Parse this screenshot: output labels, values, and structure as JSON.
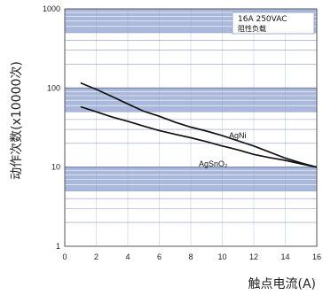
{
  "chart_data": {
    "type": "line",
    "x_scale": "linear",
    "y_scale": "log",
    "xlim": [
      0,
      16
    ],
    "ylim": [
      1,
      1000
    ],
    "x_ticks": [
      "0",
      "2",
      "4",
      "6",
      "8",
      "10",
      "12",
      "14",
      "16"
    ],
    "y_ticks": [
      "1",
      "10",
      "100",
      "1000"
    ],
    "xlabel": "触点电流(A)",
    "ylabel": "动作次数(x10000次)",
    "legend_box": {
      "line1": "16A 250VAC",
      "line2": "阻性负载"
    },
    "series": [
      {
        "name": "AgNi",
        "x": [
          1,
          2,
          3,
          4,
          5,
          6,
          7,
          8,
          9,
          10,
          11,
          12,
          13,
          14,
          15,
          16
        ],
        "y": [
          116,
          96,
          78,
          63,
          51,
          44,
          37,
          32,
          28.5,
          25,
          21.5,
          18.5,
          15.5,
          13,
          11.3,
          10
        ]
      },
      {
        "name": "AgSnO₂",
        "x": [
          1,
          2,
          3,
          4,
          5,
          6,
          7,
          8,
          9,
          10,
          11,
          12,
          13,
          14,
          15,
          16
        ],
        "y": [
          58,
          50,
          43,
          38,
          33,
          29,
          26,
          23.5,
          21,
          18.5,
          16.5,
          14.5,
          13.2,
          12.2,
          11,
          10
        ]
      }
    ],
    "series_label_positions": [
      "AgNi",
      "AgSnO₂"
    ],
    "colors": {
      "band": "#aab9db",
      "band_grid": "#ffffff",
      "grid": "#8a9cc8",
      "line": "#111111",
      "frame": "#555555"
    }
  }
}
